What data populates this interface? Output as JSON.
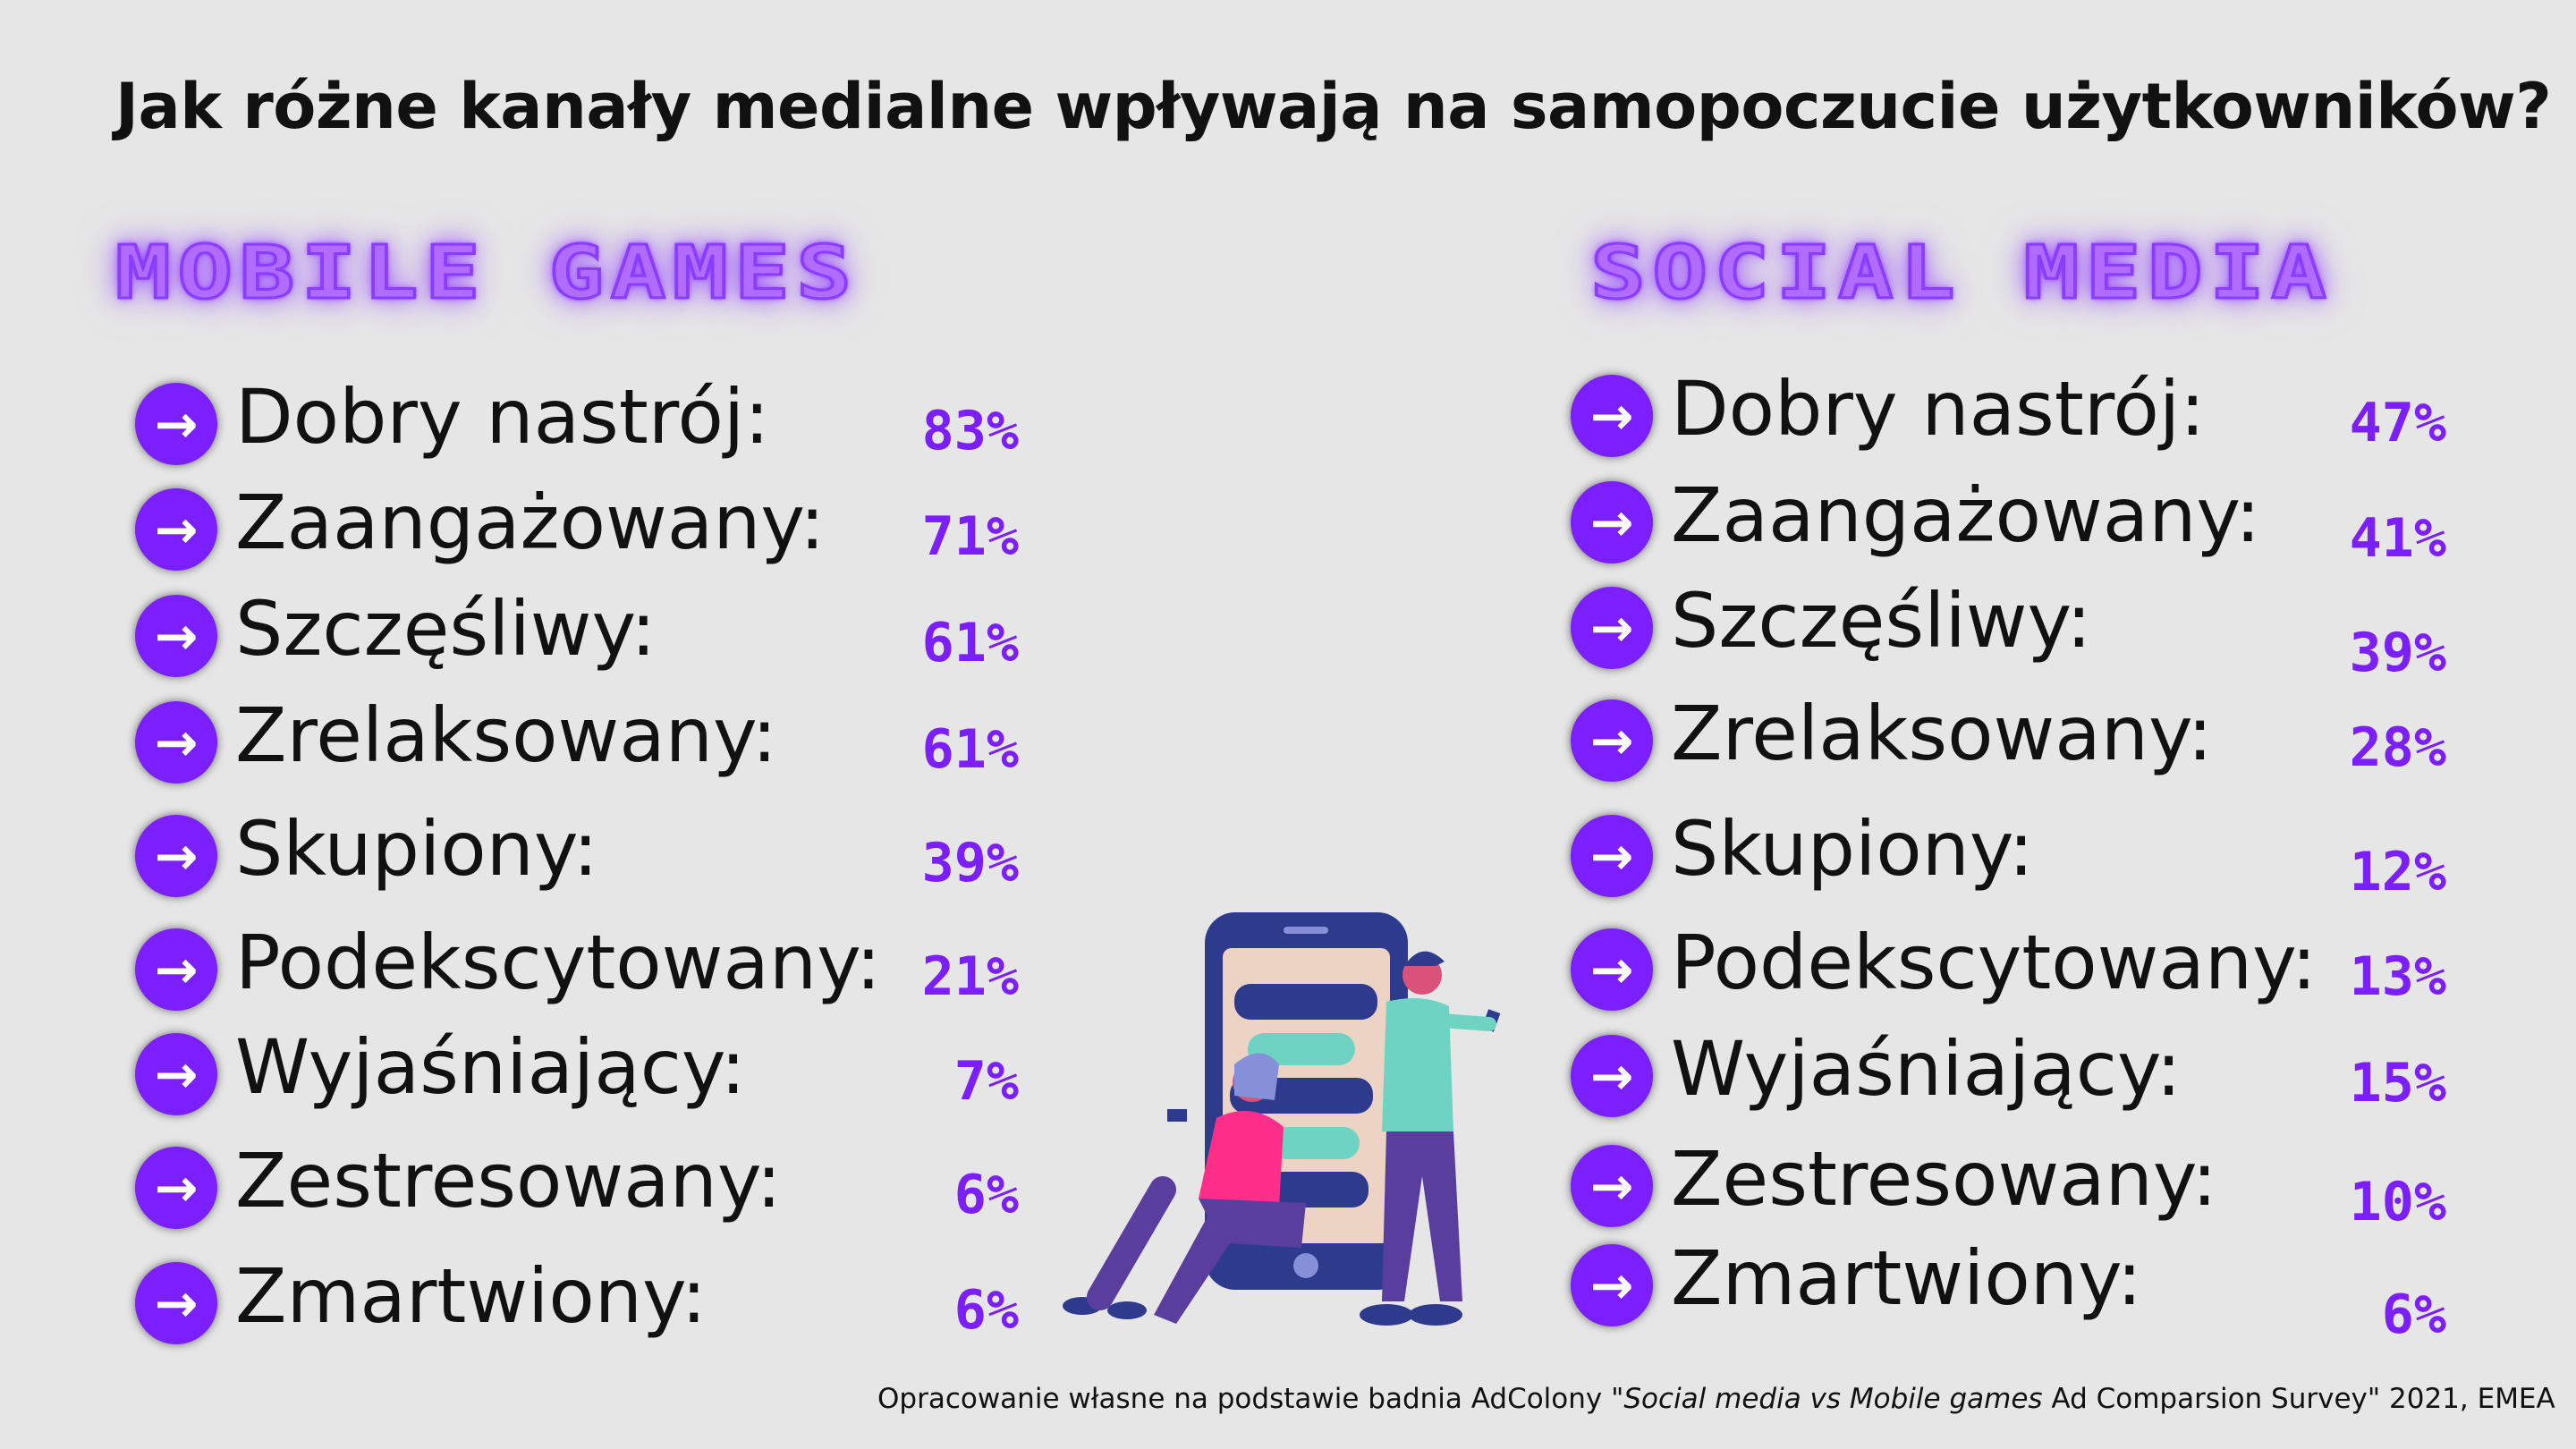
{
  "title": "Jak różne kanały medialne wpływają na samopoczucie użytkowników?",
  "colors": {
    "accent": "#7b1fff",
    "heading": "#b06bff",
    "background": "#e6e6e6"
  },
  "arrow_icon": "arrow-right-circle-icon",
  "mobile_games": {
    "heading": "Mobile Games",
    "items": [
      {
        "label": "Dobry nastrój:",
        "value": "83%"
      },
      {
        "label": "Zaangażowany:",
        "value": "71%"
      },
      {
        "label": "Szczęśliwy:",
        "value": "61%"
      },
      {
        "label": "Zrelaksowany:",
        "value": "61%"
      },
      {
        "label": "Skupiony:",
        "value": "39%"
      },
      {
        "label": "Podekscytowany:",
        "value": "21%"
      },
      {
        "label": "Wyjaśniający:",
        "value": "7%"
      },
      {
        "label": "Zestresowany:",
        "value": "6%"
      },
      {
        "label": "Zmartwiony:",
        "value": "6%"
      }
    ]
  },
  "social_media": {
    "heading": "Social Media",
    "items": [
      {
        "label": "Dobry nastrój:",
        "value": "47%"
      },
      {
        "label": "Zaangażowany:",
        "value": "41%"
      },
      {
        "label": "Szczęśliwy:",
        "value": "39%"
      },
      {
        "label": "Zrelaksowany:",
        "value": "28%"
      },
      {
        "label": "Skupiony:",
        "value": "12%"
      },
      {
        "label": "Podekscytowany:",
        "value": "13%"
      },
      {
        "label": "Wyjaśniający:",
        "value": "15%"
      },
      {
        "label": "Zestresowany:",
        "value": "10%"
      },
      {
        "label": "Zmartwiony:",
        "value": "6%"
      }
    ]
  },
  "source": {
    "prefix": "Opracowanie własne na podstawie badnia AdColony \"",
    "italic": "Social media vs Mobile games",
    "suffix": "  Ad Comparsion Survey\" 2021, EMEA"
  }
}
